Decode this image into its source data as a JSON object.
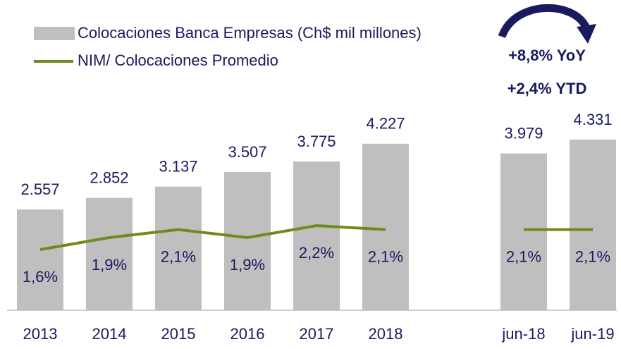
{
  "chart_data": {
    "type": "bar",
    "categories": [
      "2013",
      "2014",
      "2015",
      "2016",
      "2017",
      "2018",
      null,
      "jun-18",
      "jun-19"
    ],
    "series": [
      {
        "name": "Colocaciones Banca Empresas (Ch$ mil millones)",
        "type": "bar",
        "color": "#bfbfbf",
        "values": [
          2557,
          2852,
          3137,
          3507,
          3775,
          4227,
          null,
          3979,
          4331
        ],
        "value_labels": [
          "2.557",
          "2.852",
          "3.137",
          "3.507",
          "3.775",
          "4.227",
          null,
          "3.979",
          "4.331"
        ]
      },
      {
        "name": "NIM/ Colocaciones Promedio",
        "type": "line",
        "color": "#6e8b1e",
        "values": [
          1.6,
          1.9,
          2.1,
          1.9,
          2.2,
          2.1,
          null,
          2.1,
          2.1
        ],
        "value_labels": [
          "1,6%",
          "1,9%",
          "2,1%",
          "1,9%",
          "2,2%",
          "2,1%",
          null,
          "2,1%",
          "2,1%"
        ]
      }
    ],
    "annotations": [
      "+8,8% YoY",
      "+2,4% YTD"
    ]
  }
}
